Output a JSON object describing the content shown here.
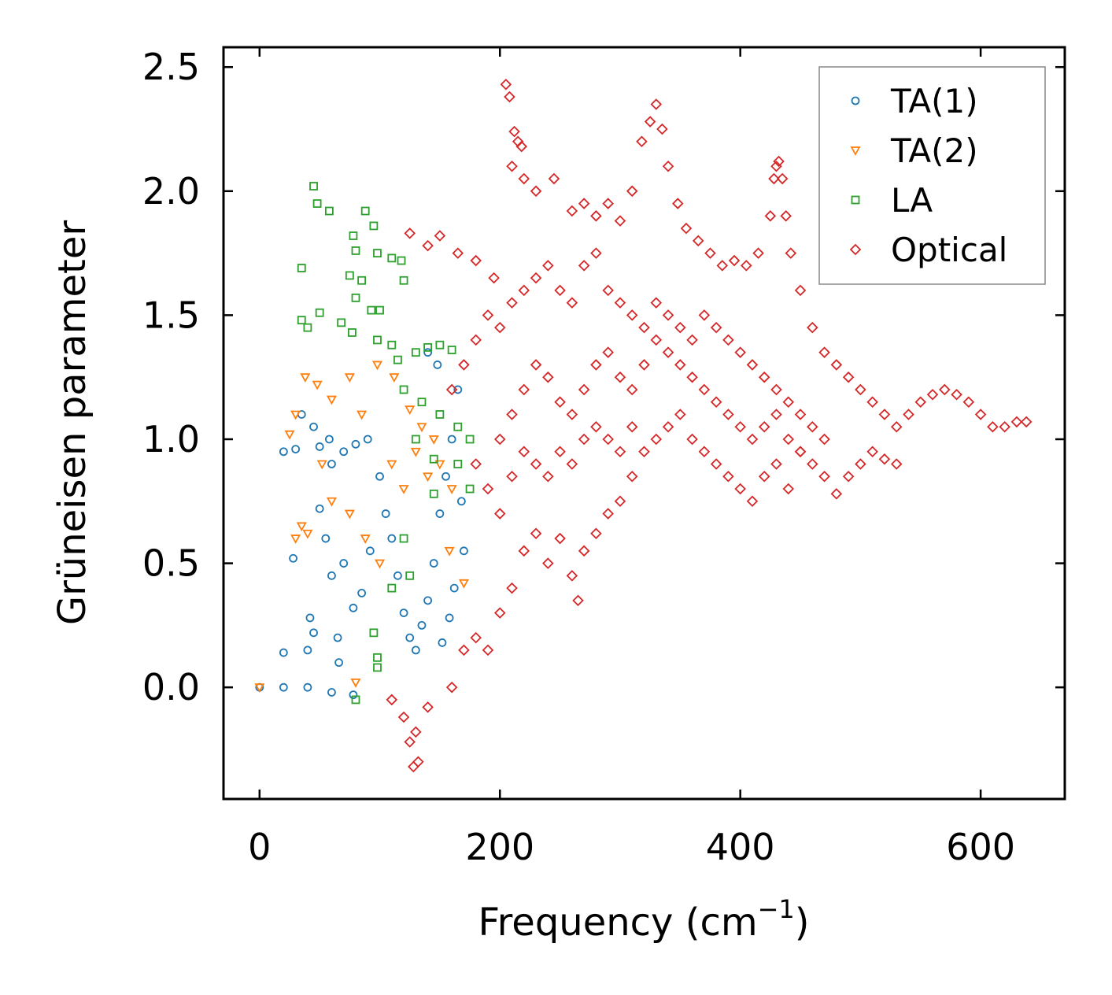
{
  "chart_data": {
    "type": "scatter",
    "xlabel": "Frequency (cm",
    "xlabel_sup": "−1",
    "xlabel_end": ")",
    "ylabel": "Grüneisen parameter",
    "xlim": [
      -30,
      670
    ],
    "ylim": [
      -0.45,
      2.58
    ],
    "xticks": [
      0,
      200,
      400,
      600
    ],
    "xtick_labels": [
      "0",
      "200",
      "400",
      "600"
    ],
    "yticks": [
      0.0,
      0.5,
      1.0,
      1.5,
      2.0,
      2.5
    ],
    "ytick_labels": [
      "0.0",
      "0.5",
      "1.0",
      "1.5",
      "2.0",
      "2.5"
    ],
    "legend_position": "top-right",
    "series": [
      {
        "name": "TA(1)",
        "marker": "circle",
        "color": "#1f77b4",
        "points": [
          [
            0,
            0.0
          ],
          [
            20,
            0.0
          ],
          [
            40,
            0.0
          ],
          [
            60,
            -0.02
          ],
          [
            78,
            -0.03
          ],
          [
            20,
            0.14
          ],
          [
            40,
            0.15
          ],
          [
            42,
            0.28
          ],
          [
            45,
            0.22
          ],
          [
            65,
            0.2
          ],
          [
            66,
            0.1
          ],
          [
            28,
            0.52
          ],
          [
            20,
            0.95
          ],
          [
            30,
            0.96
          ],
          [
            35,
            1.1
          ],
          [
            45,
            1.05
          ],
          [
            50,
            0.97
          ],
          [
            58,
            1.0
          ],
          [
            60,
            0.9
          ],
          [
            70,
            0.95
          ],
          [
            80,
            0.98
          ],
          [
            90,
            1.0
          ],
          [
            50,
            0.72
          ],
          [
            55,
            0.6
          ],
          [
            60,
            0.45
          ],
          [
            70,
            0.5
          ],
          [
            78,
            0.32
          ],
          [
            85,
            0.38
          ],
          [
            92,
            0.55
          ],
          [
            100,
            0.85
          ],
          [
            105,
            0.7
          ],
          [
            110,
            0.6
          ],
          [
            115,
            0.45
          ],
          [
            120,
            0.3
          ],
          [
            125,
            0.2
          ],
          [
            130,
            0.15
          ],
          [
            135,
            0.25
          ],
          [
            140,
            0.35
          ],
          [
            145,
            0.5
          ],
          [
            150,
            0.7
          ],
          [
            155,
            0.85
          ],
          [
            160,
            1.0
          ],
          [
            165,
            1.2
          ],
          [
            168,
            0.75
          ],
          [
            148,
            1.3
          ],
          [
            140,
            1.35
          ],
          [
            158,
            0.28
          ],
          [
            152,
            0.18
          ],
          [
            162,
            0.4
          ],
          [
            170,
            0.55
          ]
        ]
      },
      {
        "name": "TA(2)",
        "marker": "triangle",
        "color": "#ff7f0e",
        "points": [
          [
            0,
            0.0
          ],
          [
            80,
            0.02
          ],
          [
            30,
            1.1
          ],
          [
            25,
            1.02
          ],
          [
            38,
            1.25
          ],
          [
            48,
            1.22
          ],
          [
            60,
            1.16
          ],
          [
            75,
            1.25
          ],
          [
            85,
            1.1
          ],
          [
            98,
            1.3
          ],
          [
            112,
            1.25
          ],
          [
            125,
            1.12
          ],
          [
            135,
            1.05
          ],
          [
            145,
            1.0
          ],
          [
            30,
            0.6
          ],
          [
            35,
            0.65
          ],
          [
            40,
            0.62
          ],
          [
            52,
            0.9
          ],
          [
            60,
            0.75
          ],
          [
            75,
            0.7
          ],
          [
            88,
            0.6
          ],
          [
            100,
            0.5
          ],
          [
            110,
            0.9
          ],
          [
            120,
            0.8
          ],
          [
            130,
            0.95
          ],
          [
            140,
            0.85
          ],
          [
            150,
            0.9
          ],
          [
            160,
            0.8
          ],
          [
            170,
            0.42
          ],
          [
            158,
            0.55
          ]
        ]
      },
      {
        "name": "LA",
        "marker": "square",
        "color": "#2ca02c",
        "points": [
          [
            80,
            -0.05
          ],
          [
            98,
            0.08
          ],
          [
            45,
            2.02
          ],
          [
            48,
            1.95
          ],
          [
            58,
            1.92
          ],
          [
            88,
            1.92
          ],
          [
            95,
            1.86
          ],
          [
            78,
            1.82
          ],
          [
            80,
            1.76
          ],
          [
            75,
            1.66
          ],
          [
            85,
            1.64
          ],
          [
            98,
            1.75
          ],
          [
            110,
            1.73
          ],
          [
            118,
            1.72
          ],
          [
            120,
            1.64
          ],
          [
            35,
            1.69
          ],
          [
            50,
            1.51
          ],
          [
            35,
            1.48
          ],
          [
            40,
            1.45
          ],
          [
            68,
            1.47
          ],
          [
            77,
            1.43
          ],
          [
            80,
            1.57
          ],
          [
            93,
            1.52
          ],
          [
            100,
            1.52
          ],
          [
            98,
            1.4
          ],
          [
            110,
            1.38
          ],
          [
            115,
            1.32
          ],
          [
            130,
            1.35
          ],
          [
            140,
            1.37
          ],
          [
            150,
            1.38
          ],
          [
            160,
            1.36
          ],
          [
            120,
            1.2
          ],
          [
            135,
            1.15
          ],
          [
            150,
            1.1
          ],
          [
            165,
            1.05
          ],
          [
            175,
            1.0
          ],
          [
            130,
            1.0
          ],
          [
            145,
            0.92
          ],
          [
            165,
            0.9
          ],
          [
            175,
            0.8
          ],
          [
            120,
            0.6
          ],
          [
            125,
            0.45
          ],
          [
            110,
            0.4
          ],
          [
            95,
            0.22
          ],
          [
            98,
            0.12
          ],
          [
            145,
            0.78
          ]
        ]
      },
      {
        "name": "Optical",
        "marker": "diamond",
        "color": "#d62728",
        "points": [
          [
            205,
            2.43
          ],
          [
            208,
            2.38
          ],
          [
            212,
            2.24
          ],
          [
            215,
            2.2
          ],
          [
            218,
            2.18
          ],
          [
            210,
            2.1
          ],
          [
            220,
            2.05
          ],
          [
            230,
            2.0
          ],
          [
            245,
            2.05
          ],
          [
            260,
            1.92
          ],
          [
            270,
            1.95
          ],
          [
            280,
            1.9
          ],
          [
            290,
            1.95
          ],
          [
            300,
            1.88
          ],
          [
            310,
            2.0
          ],
          [
            318,
            2.2
          ],
          [
            325,
            2.28
          ],
          [
            330,
            2.35
          ],
          [
            335,
            2.25
          ],
          [
            340,
            2.1
          ],
          [
            348,
            1.95
          ],
          [
            355,
            1.85
          ],
          [
            365,
            1.8
          ],
          [
            375,
            1.75
          ],
          [
            385,
            1.7
          ],
          [
            395,
            1.72
          ],
          [
            405,
            1.7
          ],
          [
            415,
            1.75
          ],
          [
            425,
            1.9
          ],
          [
            428,
            2.05
          ],
          [
            430,
            2.1
          ],
          [
            432,
            2.12
          ],
          [
            435,
            2.05
          ],
          [
            438,
            1.9
          ],
          [
            442,
            1.75
          ],
          [
            450,
            1.6
          ],
          [
            460,
            1.45
          ],
          [
            470,
            1.35
          ],
          [
            480,
            1.3
          ],
          [
            490,
            1.25
          ],
          [
            500,
            1.2
          ],
          [
            510,
            1.15
          ],
          [
            520,
            1.1
          ],
          [
            530,
            1.05
          ],
          [
            540,
            1.1
          ],
          [
            550,
            1.15
          ],
          [
            560,
            1.18
          ],
          [
            570,
            1.2
          ],
          [
            580,
            1.18
          ],
          [
            590,
            1.15
          ],
          [
            600,
            1.1
          ],
          [
            610,
            1.05
          ],
          [
            620,
            1.05
          ],
          [
            630,
            1.07
          ],
          [
            638,
            1.07
          ],
          [
            125,
            1.83
          ],
          [
            140,
            1.78
          ],
          [
            150,
            1.82
          ],
          [
            165,
            1.75
          ],
          [
            180,
            1.72
          ],
          [
            195,
            1.65
          ],
          [
            130,
            -0.18
          ],
          [
            125,
            -0.22
          ],
          [
            128,
            -0.32
          ],
          [
            132,
            -0.3
          ],
          [
            120,
            -0.12
          ],
          [
            110,
            -0.05
          ],
          [
            140,
            -0.08
          ],
          [
            160,
            0.0
          ],
          [
            170,
            0.15
          ],
          [
            180,
            0.2
          ],
          [
            190,
            0.15
          ],
          [
            200,
            0.3
          ],
          [
            210,
            0.4
          ],
          [
            220,
            0.55
          ],
          [
            230,
            0.62
          ],
          [
            240,
            0.5
          ],
          [
            250,
            0.6
          ],
          [
            260,
            0.45
          ],
          [
            265,
            0.35
          ],
          [
            270,
            0.55
          ],
          [
            280,
            0.62
          ],
          [
            290,
            0.7
          ],
          [
            300,
            0.75
          ],
          [
            310,
            0.85
          ],
          [
            320,
            0.95
          ],
          [
            330,
            1.0
          ],
          [
            340,
            1.05
          ],
          [
            350,
            1.1
          ],
          [
            360,
            1.0
          ],
          [
            370,
            0.95
          ],
          [
            380,
            0.9
          ],
          [
            390,
            0.85
          ],
          [
            400,
            0.8
          ],
          [
            410,
            0.75
          ],
          [
            420,
            0.85
          ],
          [
            430,
            0.9
          ],
          [
            440,
            0.8
          ],
          [
            450,
            0.95
          ],
          [
            460,
            0.9
          ],
          [
            470,
            0.85
          ],
          [
            480,
            0.78
          ],
          [
            490,
            0.85
          ],
          [
            500,
            0.9
          ],
          [
            510,
            0.95
          ],
          [
            520,
            0.92
          ],
          [
            530,
            0.9
          ],
          [
            160,
            1.2
          ],
          [
            170,
            1.3
          ],
          [
            180,
            1.4
          ],
          [
            190,
            1.5
          ],
          [
            200,
            1.45
          ],
          [
            210,
            1.55
          ],
          [
            220,
            1.6
          ],
          [
            230,
            1.65
          ],
          [
            240,
            1.7
          ],
          [
            250,
            1.6
          ],
          [
            260,
            1.55
          ],
          [
            270,
            1.7
          ],
          [
            280,
            1.75
          ],
          [
            290,
            1.6
          ],
          [
            300,
            1.55
          ],
          [
            310,
            1.5
          ],
          [
            320,
            1.45
          ],
          [
            330,
            1.55
          ],
          [
            340,
            1.5
          ],
          [
            350,
            1.45
          ],
          [
            360,
            1.4
          ],
          [
            370,
            1.5
          ],
          [
            380,
            1.45
          ],
          [
            390,
            1.4
          ],
          [
            400,
            1.35
          ],
          [
            410,
            1.3
          ],
          [
            420,
            1.25
          ],
          [
            430,
            1.2
          ],
          [
            440,
            1.15
          ],
          [
            450,
            1.1
          ],
          [
            460,
            1.05
          ],
          [
            470,
            1.0
          ],
          [
            200,
            1.0
          ],
          [
            210,
            1.1
          ],
          [
            220,
            1.2
          ],
          [
            230,
            1.3
          ],
          [
            240,
            1.25
          ],
          [
            250,
            1.15
          ],
          [
            260,
            1.1
          ],
          [
            270,
            1.2
          ],
          [
            280,
            1.3
          ],
          [
            290,
            1.35
          ],
          [
            300,
            1.25
          ],
          [
            310,
            1.2
          ],
          [
            320,
            1.3
          ],
          [
            330,
            1.4
          ],
          [
            340,
            1.35
          ],
          [
            350,
            1.3
          ],
          [
            360,
            1.25
          ],
          [
            370,
            1.2
          ],
          [
            380,
            1.15
          ],
          [
            390,
            1.1
          ],
          [
            400,
            1.05
          ],
          [
            410,
            1.0
          ],
          [
            420,
            1.05
          ],
          [
            430,
            1.1
          ],
          [
            440,
            1.0
          ],
          [
            450,
            0.95
          ],
          [
            180,
            0.9
          ],
          [
            190,
            0.8
          ],
          [
            200,
            0.7
          ],
          [
            210,
            0.85
          ],
          [
            220,
            0.95
          ],
          [
            230,
            0.9
          ],
          [
            240,
            0.85
          ],
          [
            250,
            0.95
          ],
          [
            260,
            0.9
          ],
          [
            270,
            1.0
          ],
          [
            280,
            1.05
          ],
          [
            290,
            1.0
          ],
          [
            300,
            0.95
          ],
          [
            310,
            1.05
          ]
        ]
      }
    ]
  }
}
